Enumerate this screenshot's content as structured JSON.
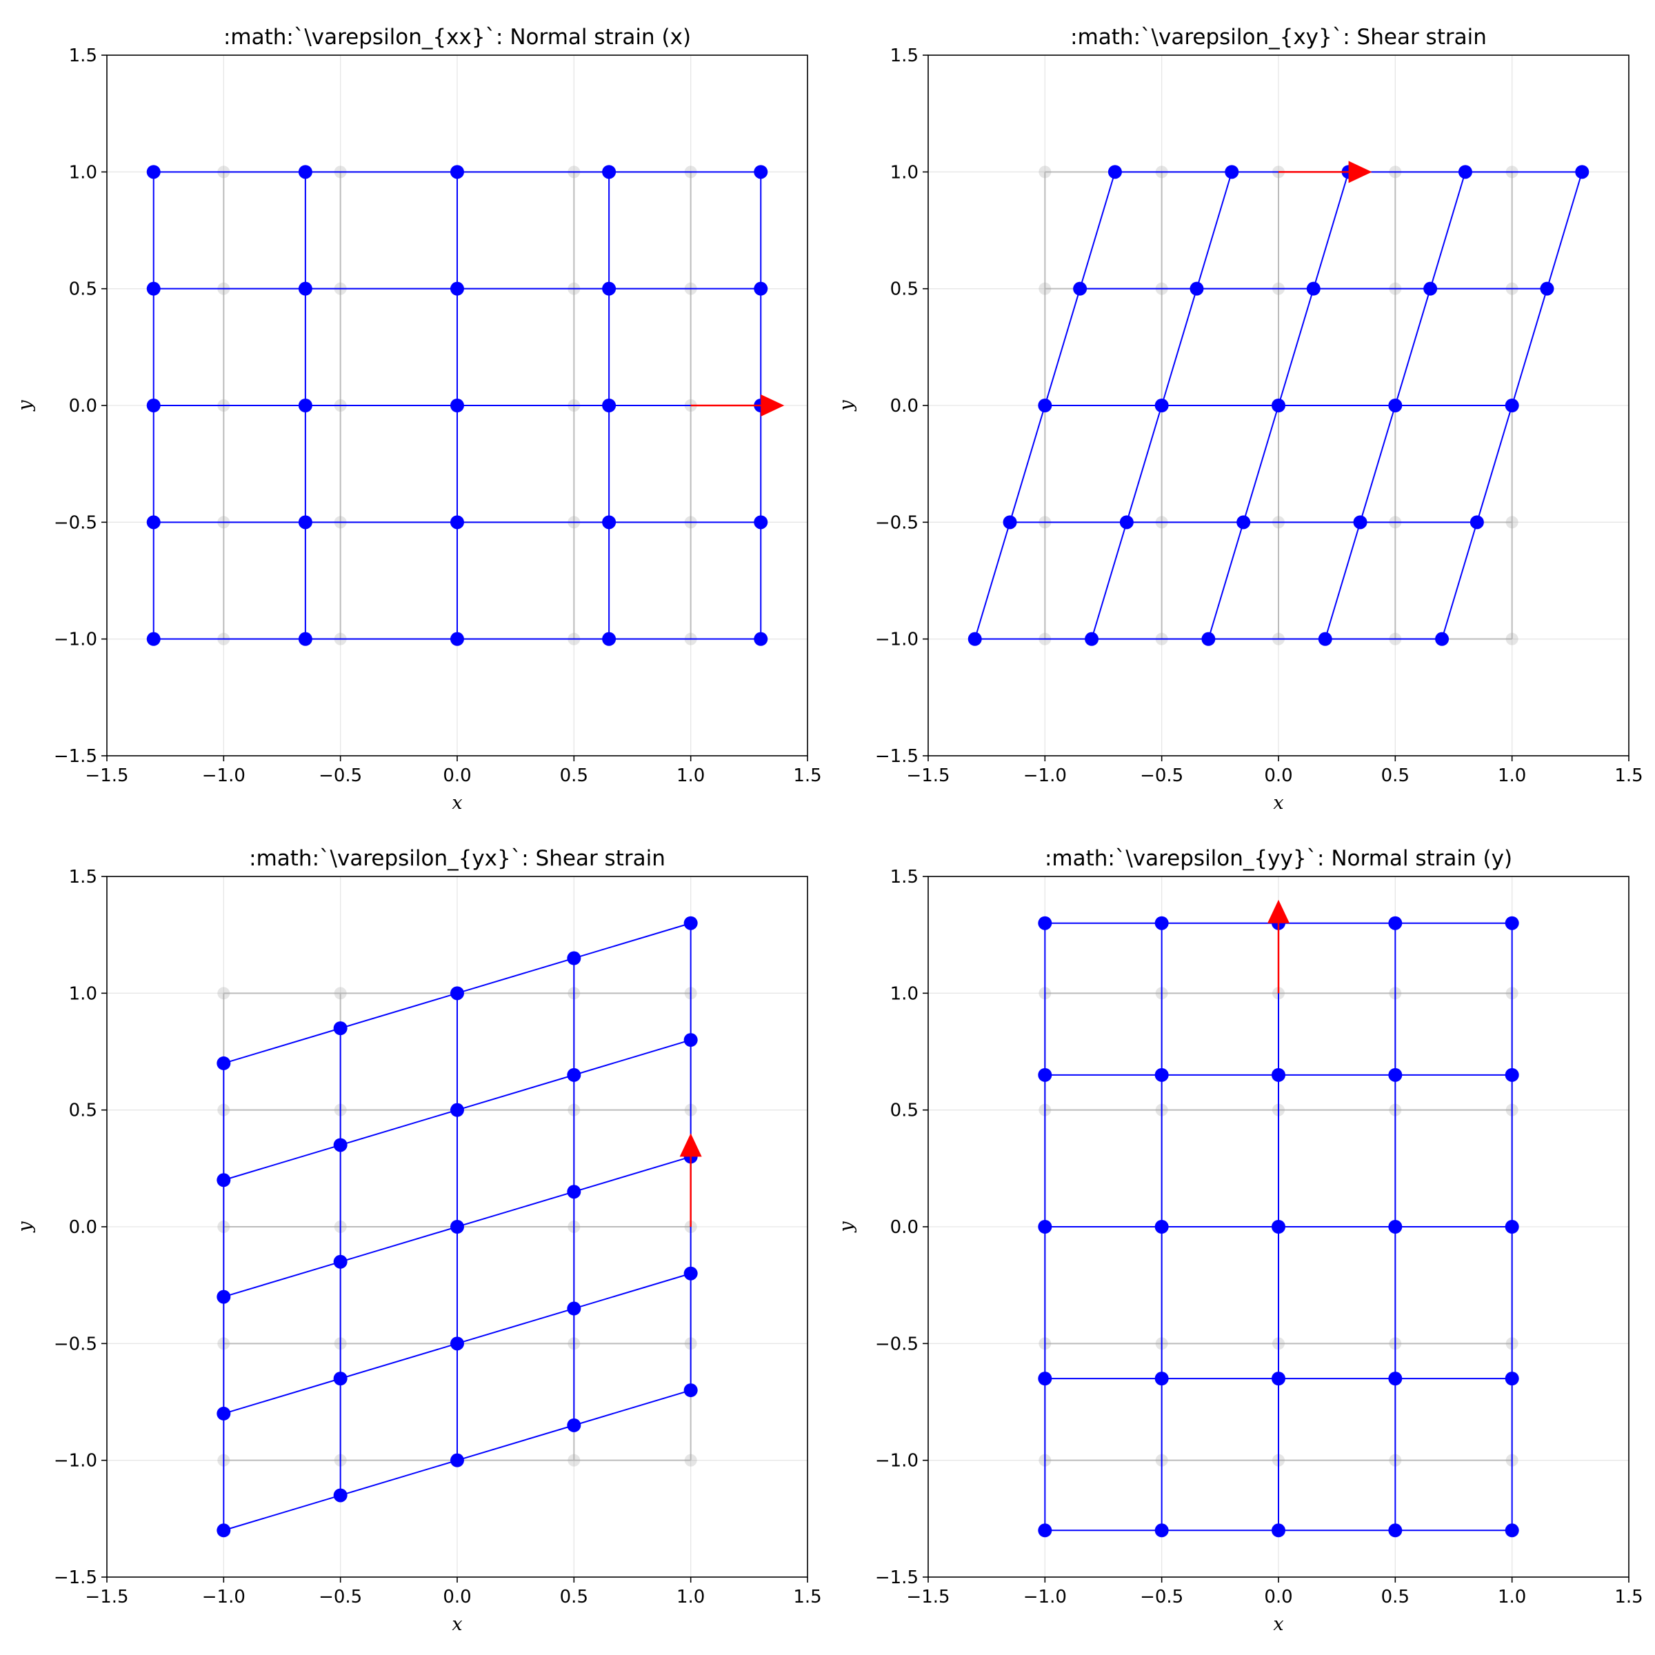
{
  "chart_data": [
    {
      "type": "scatter",
      "title": ":math:`\\varepsilon_{xx}`: Normal strain (x)",
      "xlabel": "x",
      "ylabel": "y",
      "xlim": [
        -1.5,
        1.5
      ],
      "ylim": [
        -1.5,
        1.5
      ],
      "xticks": [
        "−1.5",
        "−1.0",
        "−0.5",
        "0.0",
        "0.5",
        "1.0",
        "1.5"
      ],
      "yticks": [
        "−1.5",
        "−1.0",
        "−0.5",
        "0.0",
        "0.5",
        "1.0",
        "1.5"
      ],
      "grid": true,
      "original_grid": {
        "x": [
          -1.0,
          -0.5,
          0.0,
          0.5,
          1.0
        ],
        "y": [
          -1.0,
          -0.5,
          0.0,
          0.5,
          1.0
        ],
        "color": "#bbbbbb"
      },
      "deformation": [
        [
          1.3,
          0.0
        ],
        [
          0.0,
          1.0
        ]
      ],
      "deformed_color": "#0000ff",
      "arrow": {
        "from": [
          1.0,
          0.0
        ],
        "to": [
          1.3,
          0.0
        ],
        "color": "#ff0000"
      }
    },
    {
      "type": "scatter",
      "title": ":math:`\\varepsilon_{xy}`: Shear strain",
      "xlabel": "x",
      "ylabel": "y",
      "xlim": [
        -1.5,
        1.5
      ],
      "ylim": [
        -1.5,
        1.5
      ],
      "xticks": [
        "−1.5",
        "−1.0",
        "−0.5",
        "0.0",
        "0.5",
        "1.0",
        "1.5"
      ],
      "yticks": [
        "−1.5",
        "−1.0",
        "−0.5",
        "0.0",
        "0.5",
        "1.0",
        "1.5"
      ],
      "grid": true,
      "original_grid": {
        "x": [
          -1.0,
          -0.5,
          0.0,
          0.5,
          1.0
        ],
        "y": [
          -1.0,
          -0.5,
          0.0,
          0.5,
          1.0
        ],
        "color": "#bbbbbb"
      },
      "deformation": [
        [
          1.0,
          0.3
        ],
        [
          0.0,
          1.0
        ]
      ],
      "deformed_color": "#0000ff",
      "arrow": {
        "from": [
          0.0,
          1.0
        ],
        "to": [
          0.3,
          1.0
        ],
        "color": "#ff0000"
      }
    },
    {
      "type": "scatter",
      "title": ":math:`\\varepsilon_{yx}`: Shear strain",
      "xlabel": "x",
      "ylabel": "y",
      "xlim": [
        -1.5,
        1.5
      ],
      "ylim": [
        -1.5,
        1.5
      ],
      "xticks": [
        "−1.5",
        "−1.0",
        "−0.5",
        "0.0",
        "0.5",
        "1.0",
        "1.5"
      ],
      "yticks": [
        "−1.5",
        "−1.0",
        "−0.5",
        "0.0",
        "0.5",
        "1.0",
        "1.5"
      ],
      "grid": true,
      "original_grid": {
        "x": [
          -1.0,
          -0.5,
          0.0,
          0.5,
          1.0
        ],
        "y": [
          -1.0,
          -0.5,
          0.0,
          0.5,
          1.0
        ],
        "color": "#bbbbbb"
      },
      "deformation": [
        [
          1.0,
          0.0
        ],
        [
          0.3,
          1.0
        ]
      ],
      "deformed_color": "#0000ff",
      "arrow": {
        "from": [
          1.0,
          0.0
        ],
        "to": [
          1.0,
          0.3
        ],
        "color": "#ff0000"
      }
    },
    {
      "type": "scatter",
      "title": ":math:`\\varepsilon_{yy}`: Normal strain (y)",
      "xlabel": "x",
      "ylabel": "y",
      "xlim": [
        -1.5,
        1.5
      ],
      "ylim": [
        -1.5,
        1.5
      ],
      "xticks": [
        "−1.5",
        "−1.0",
        "−0.5",
        "0.0",
        "0.5",
        "1.0",
        "1.5"
      ],
      "yticks": [
        "−1.5",
        "−1.0",
        "−0.5",
        "0.0",
        "0.5",
        "1.0",
        "1.5"
      ],
      "grid": true,
      "original_grid": {
        "x": [
          -1.0,
          -0.5,
          0.0,
          0.5,
          1.0
        ],
        "y": [
          -1.0,
          -0.5,
          0.0,
          0.5,
          1.0
        ],
        "color": "#bbbbbb"
      },
      "deformation": [
        [
          1.0,
          0.0
        ],
        [
          0.0,
          1.3
        ]
      ],
      "deformed_color": "#0000ff",
      "arrow": {
        "from": [
          0.0,
          1.0
        ],
        "to": [
          0.0,
          1.3
        ],
        "color": "#ff0000"
      }
    }
  ]
}
